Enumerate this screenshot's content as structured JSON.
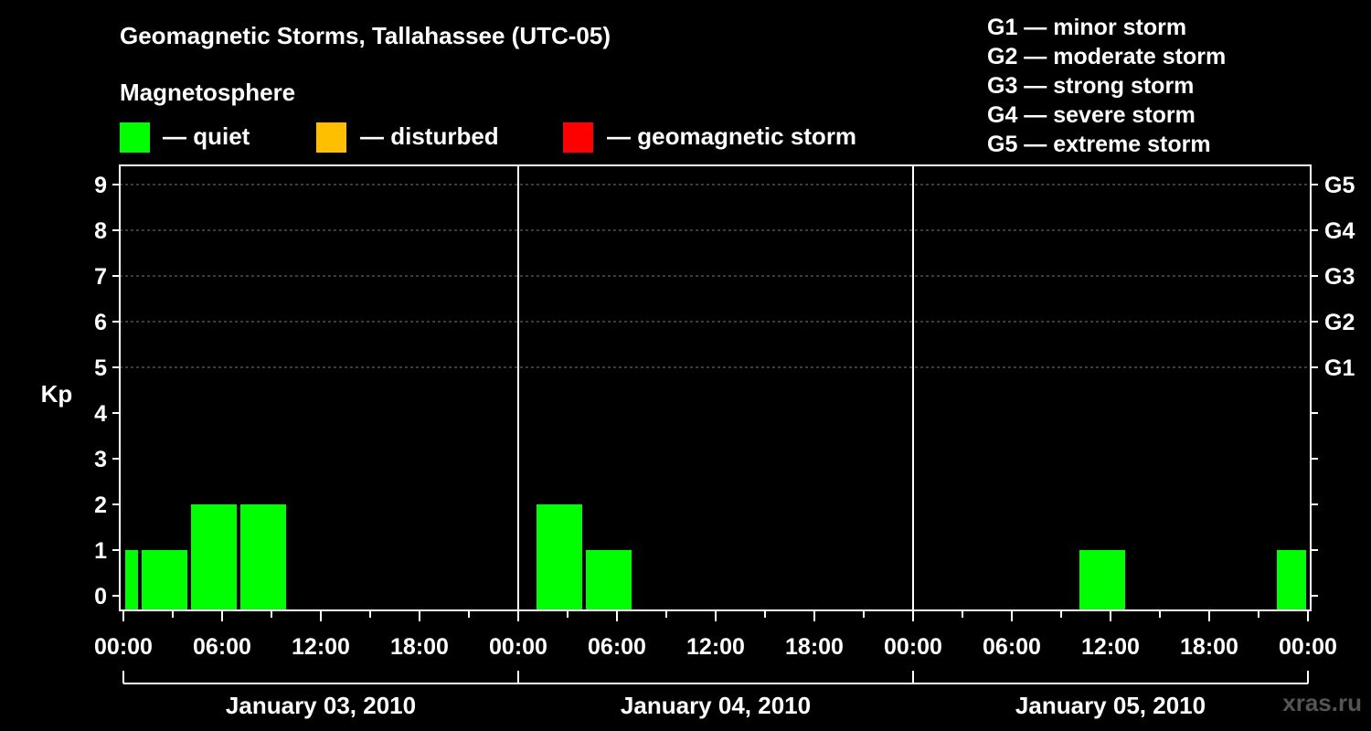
{
  "title": "Geomagnetic Storms, Tallahassee (UTC-05)",
  "subtitle": "Magnetosphere",
  "legend": [
    {
      "label": "— quiet",
      "color": "#00ff00"
    },
    {
      "label": "— disturbed",
      "color": "#ffbf00"
    },
    {
      "label": "— geomagnetic storm",
      "color": "#ff0000"
    }
  ],
  "g_levels": [
    "G1 — minor storm",
    "G2 — moderate storm",
    "G3 — strong storm",
    "G4 — severe storm",
    "G5 — extreme storm"
  ],
  "watermark": "xras.ru",
  "chart_data": {
    "type": "bar",
    "ylabel": "Kp",
    "ylim": [
      0,
      9
    ],
    "y_ticks": [
      "0",
      "1",
      "2",
      "3",
      "4",
      "5",
      "6",
      "7",
      "8",
      "9"
    ],
    "right_ticks": [
      {
        "kp": 5,
        "label": "G1"
      },
      {
        "kp": 6,
        "label": "G2"
      },
      {
        "kp": 7,
        "label": "G3"
      },
      {
        "kp": 8,
        "label": "G4"
      },
      {
        "kp": 9,
        "label": "G5"
      }
    ],
    "x_tick_labels": [
      "00:00",
      "06:00",
      "12:00",
      "18:00",
      "00:00",
      "06:00",
      "12:00",
      "18:00",
      "00:00",
      "06:00",
      "12:00",
      "18:00",
      "00:00"
    ],
    "days": [
      "January 03, 2010",
      "January 04, 2010",
      "January 05, 2010"
    ],
    "grid": "dashed at Kp 5-9",
    "bars": [
      {
        "start_hour": 0,
        "end_hour": 1,
        "kp": 1,
        "color": "#00ff00"
      },
      {
        "start_hour": 1,
        "end_hour": 4,
        "kp": 1,
        "color": "#00ff00"
      },
      {
        "start_hour": 4,
        "end_hour": 7,
        "kp": 2,
        "color": "#00ff00"
      },
      {
        "start_hour": 7,
        "end_hour": 10,
        "kp": 2,
        "color": "#00ff00"
      },
      {
        "start_hour": 25,
        "end_hour": 28,
        "kp": 2,
        "color": "#00ff00"
      },
      {
        "start_hour": 28,
        "end_hour": 31,
        "kp": 1,
        "color": "#00ff00"
      },
      {
        "start_hour": 58,
        "end_hour": 61,
        "kp": 1,
        "color": "#00ff00"
      },
      {
        "start_hour": 70,
        "end_hour": 72,
        "kp": 1,
        "color": "#00ff00"
      }
    ]
  }
}
